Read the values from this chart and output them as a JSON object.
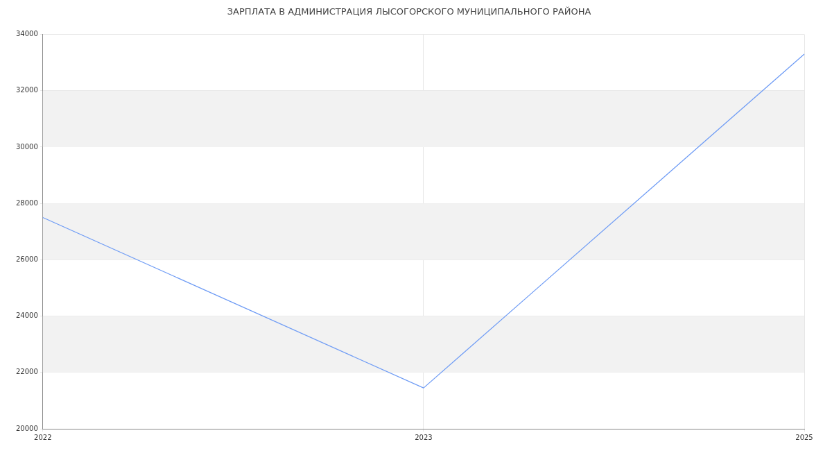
{
  "chart_data": {
    "type": "line",
    "title": "ЗАРПЛАТА В АДМИНИСТРАЦИЯ ЛЫСОГОРСКОГО МУНИЦИПАЛЬНОГО РАЙОНА",
    "categories": [
      "2022",
      "2023",
      "2025"
    ],
    "series": [
      {
        "color": "#6f9cf5",
        "values": [
          27500,
          21450,
          33300
        ]
      }
    ],
    "ylim": [
      20000,
      34000
    ],
    "yticks": [
      20000,
      22000,
      24000,
      26000,
      28000,
      30000,
      32000,
      34000
    ],
    "bands": [
      {
        "axis": "y",
        "from": 22000,
        "to": 24000,
        "color": "#f2f2f2"
      },
      {
        "axis": "y",
        "from": 26000,
        "to": 28000,
        "color": "#f2f2f2"
      },
      {
        "axis": "y",
        "from": 30000,
        "to": 32000,
        "color": "#f2f2f2"
      }
    ],
    "grid": true,
    "legend": false,
    "marker": "none",
    "line_style": "solid"
  }
}
